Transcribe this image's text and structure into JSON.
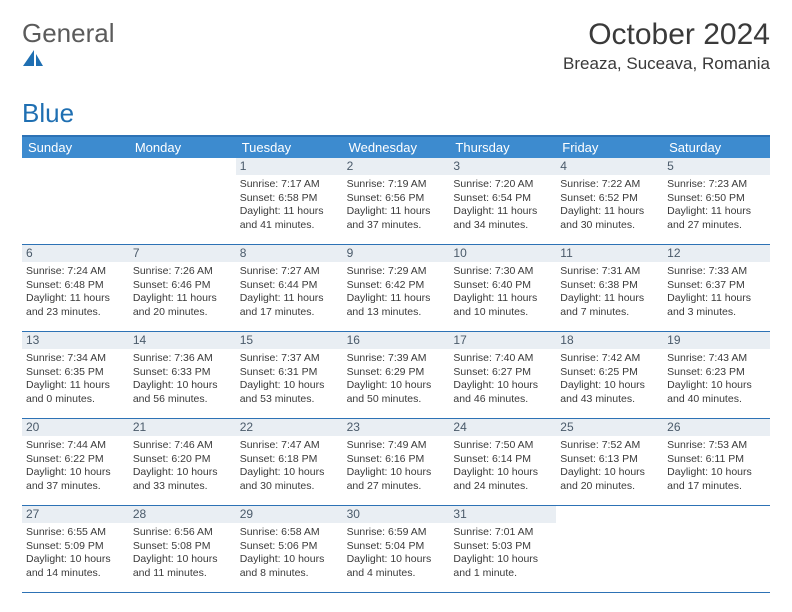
{
  "logo": {
    "text_general": "General",
    "text_blue": "Blue"
  },
  "header": {
    "month_title": "October 2024",
    "location": "Breaza, Suceava, Romania"
  },
  "colors": {
    "header_bar": "#3d8bcf",
    "rule": "#2d72b5",
    "daynum_bg": "#e9eef3",
    "text": "#3a3a3a"
  },
  "days_of_week": [
    "Sunday",
    "Monday",
    "Tuesday",
    "Wednesday",
    "Thursday",
    "Friday",
    "Saturday"
  ],
  "weeks": [
    [
      null,
      null,
      {
        "n": "1",
        "sr": "Sunrise: 7:17 AM",
        "ss": "Sunset: 6:58 PM",
        "dl1": "Daylight: 11 hours",
        "dl2": "and 41 minutes."
      },
      {
        "n": "2",
        "sr": "Sunrise: 7:19 AM",
        "ss": "Sunset: 6:56 PM",
        "dl1": "Daylight: 11 hours",
        "dl2": "and 37 minutes."
      },
      {
        "n": "3",
        "sr": "Sunrise: 7:20 AM",
        "ss": "Sunset: 6:54 PM",
        "dl1": "Daylight: 11 hours",
        "dl2": "and 34 minutes."
      },
      {
        "n": "4",
        "sr": "Sunrise: 7:22 AM",
        "ss": "Sunset: 6:52 PM",
        "dl1": "Daylight: 11 hours",
        "dl2": "and 30 minutes."
      },
      {
        "n": "5",
        "sr": "Sunrise: 7:23 AM",
        "ss": "Sunset: 6:50 PM",
        "dl1": "Daylight: 11 hours",
        "dl2": "and 27 minutes."
      }
    ],
    [
      {
        "n": "6",
        "sr": "Sunrise: 7:24 AM",
        "ss": "Sunset: 6:48 PM",
        "dl1": "Daylight: 11 hours",
        "dl2": "and 23 minutes."
      },
      {
        "n": "7",
        "sr": "Sunrise: 7:26 AM",
        "ss": "Sunset: 6:46 PM",
        "dl1": "Daylight: 11 hours",
        "dl2": "and 20 minutes."
      },
      {
        "n": "8",
        "sr": "Sunrise: 7:27 AM",
        "ss": "Sunset: 6:44 PM",
        "dl1": "Daylight: 11 hours",
        "dl2": "and 17 minutes."
      },
      {
        "n": "9",
        "sr": "Sunrise: 7:29 AM",
        "ss": "Sunset: 6:42 PM",
        "dl1": "Daylight: 11 hours",
        "dl2": "and 13 minutes."
      },
      {
        "n": "10",
        "sr": "Sunrise: 7:30 AM",
        "ss": "Sunset: 6:40 PM",
        "dl1": "Daylight: 11 hours",
        "dl2": "and 10 minutes."
      },
      {
        "n": "11",
        "sr": "Sunrise: 7:31 AM",
        "ss": "Sunset: 6:38 PM",
        "dl1": "Daylight: 11 hours",
        "dl2": "and 7 minutes."
      },
      {
        "n": "12",
        "sr": "Sunrise: 7:33 AM",
        "ss": "Sunset: 6:37 PM",
        "dl1": "Daylight: 11 hours",
        "dl2": "and 3 minutes."
      }
    ],
    [
      {
        "n": "13",
        "sr": "Sunrise: 7:34 AM",
        "ss": "Sunset: 6:35 PM",
        "dl1": "Daylight: 11 hours",
        "dl2": "and 0 minutes."
      },
      {
        "n": "14",
        "sr": "Sunrise: 7:36 AM",
        "ss": "Sunset: 6:33 PM",
        "dl1": "Daylight: 10 hours",
        "dl2": "and 56 minutes."
      },
      {
        "n": "15",
        "sr": "Sunrise: 7:37 AM",
        "ss": "Sunset: 6:31 PM",
        "dl1": "Daylight: 10 hours",
        "dl2": "and 53 minutes."
      },
      {
        "n": "16",
        "sr": "Sunrise: 7:39 AM",
        "ss": "Sunset: 6:29 PM",
        "dl1": "Daylight: 10 hours",
        "dl2": "and 50 minutes."
      },
      {
        "n": "17",
        "sr": "Sunrise: 7:40 AM",
        "ss": "Sunset: 6:27 PM",
        "dl1": "Daylight: 10 hours",
        "dl2": "and 46 minutes."
      },
      {
        "n": "18",
        "sr": "Sunrise: 7:42 AM",
        "ss": "Sunset: 6:25 PM",
        "dl1": "Daylight: 10 hours",
        "dl2": "and 43 minutes."
      },
      {
        "n": "19",
        "sr": "Sunrise: 7:43 AM",
        "ss": "Sunset: 6:23 PM",
        "dl1": "Daylight: 10 hours",
        "dl2": "and 40 minutes."
      }
    ],
    [
      {
        "n": "20",
        "sr": "Sunrise: 7:44 AM",
        "ss": "Sunset: 6:22 PM",
        "dl1": "Daylight: 10 hours",
        "dl2": "and 37 minutes."
      },
      {
        "n": "21",
        "sr": "Sunrise: 7:46 AM",
        "ss": "Sunset: 6:20 PM",
        "dl1": "Daylight: 10 hours",
        "dl2": "and 33 minutes."
      },
      {
        "n": "22",
        "sr": "Sunrise: 7:47 AM",
        "ss": "Sunset: 6:18 PM",
        "dl1": "Daylight: 10 hours",
        "dl2": "and 30 minutes."
      },
      {
        "n": "23",
        "sr": "Sunrise: 7:49 AM",
        "ss": "Sunset: 6:16 PM",
        "dl1": "Daylight: 10 hours",
        "dl2": "and 27 minutes."
      },
      {
        "n": "24",
        "sr": "Sunrise: 7:50 AM",
        "ss": "Sunset: 6:14 PM",
        "dl1": "Daylight: 10 hours",
        "dl2": "and 24 minutes."
      },
      {
        "n": "25",
        "sr": "Sunrise: 7:52 AM",
        "ss": "Sunset: 6:13 PM",
        "dl1": "Daylight: 10 hours",
        "dl2": "and 20 minutes."
      },
      {
        "n": "26",
        "sr": "Sunrise: 7:53 AM",
        "ss": "Sunset: 6:11 PM",
        "dl1": "Daylight: 10 hours",
        "dl2": "and 17 minutes."
      }
    ],
    [
      {
        "n": "27",
        "sr": "Sunrise: 6:55 AM",
        "ss": "Sunset: 5:09 PM",
        "dl1": "Daylight: 10 hours",
        "dl2": "and 14 minutes."
      },
      {
        "n": "28",
        "sr": "Sunrise: 6:56 AM",
        "ss": "Sunset: 5:08 PM",
        "dl1": "Daylight: 10 hours",
        "dl2": "and 11 minutes."
      },
      {
        "n": "29",
        "sr": "Sunrise: 6:58 AM",
        "ss": "Sunset: 5:06 PM",
        "dl1": "Daylight: 10 hours",
        "dl2": "and 8 minutes."
      },
      {
        "n": "30",
        "sr": "Sunrise: 6:59 AM",
        "ss": "Sunset: 5:04 PM",
        "dl1": "Daylight: 10 hours",
        "dl2": "and 4 minutes."
      },
      {
        "n": "31",
        "sr": "Sunrise: 7:01 AM",
        "ss": "Sunset: 5:03 PM",
        "dl1": "Daylight: 10 hours",
        "dl2": "and 1 minute."
      },
      null,
      null
    ]
  ]
}
